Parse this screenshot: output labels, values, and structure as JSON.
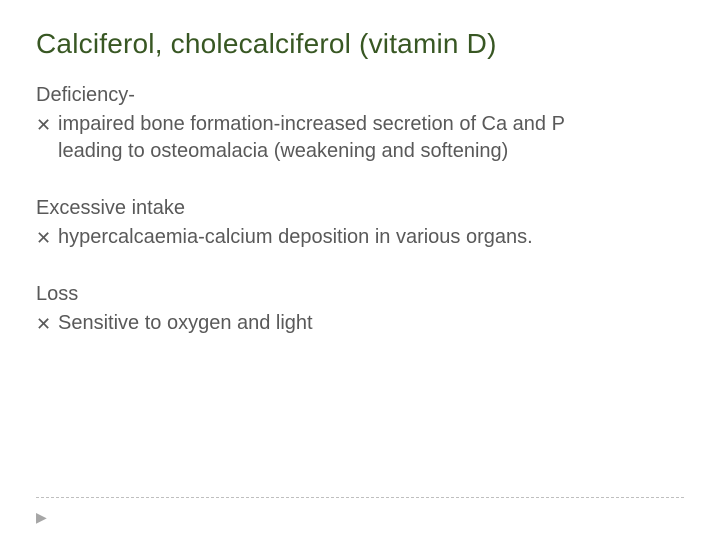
{
  "slide": {
    "title": "Calciferol, cholecalciferol (vitamin D)",
    "title_color": "#385723",
    "title_fontsize": 28,
    "body_color": "#595959",
    "body_fontsize": 20,
    "bullet_glyph": "✕",
    "background_color": "#ffffff",
    "divider_color": "#bfbfbf",
    "arrow_color": "#a6a6a6",
    "sections": [
      {
        "heading": "Deficiency-",
        "items": [
          "impaired bone formation-increased secretion of Ca and P leading to osteomalacia (weakening and softening)"
        ]
      },
      {
        "heading": "Excessive intake",
        "items": [
          "hypercalcaemia-calcium deposition in various organs."
        ]
      },
      {
        "heading": "Loss",
        "items": [
          "Sensitive to oxygen and light"
        ]
      }
    ],
    "arrow_glyph": "▶"
  }
}
